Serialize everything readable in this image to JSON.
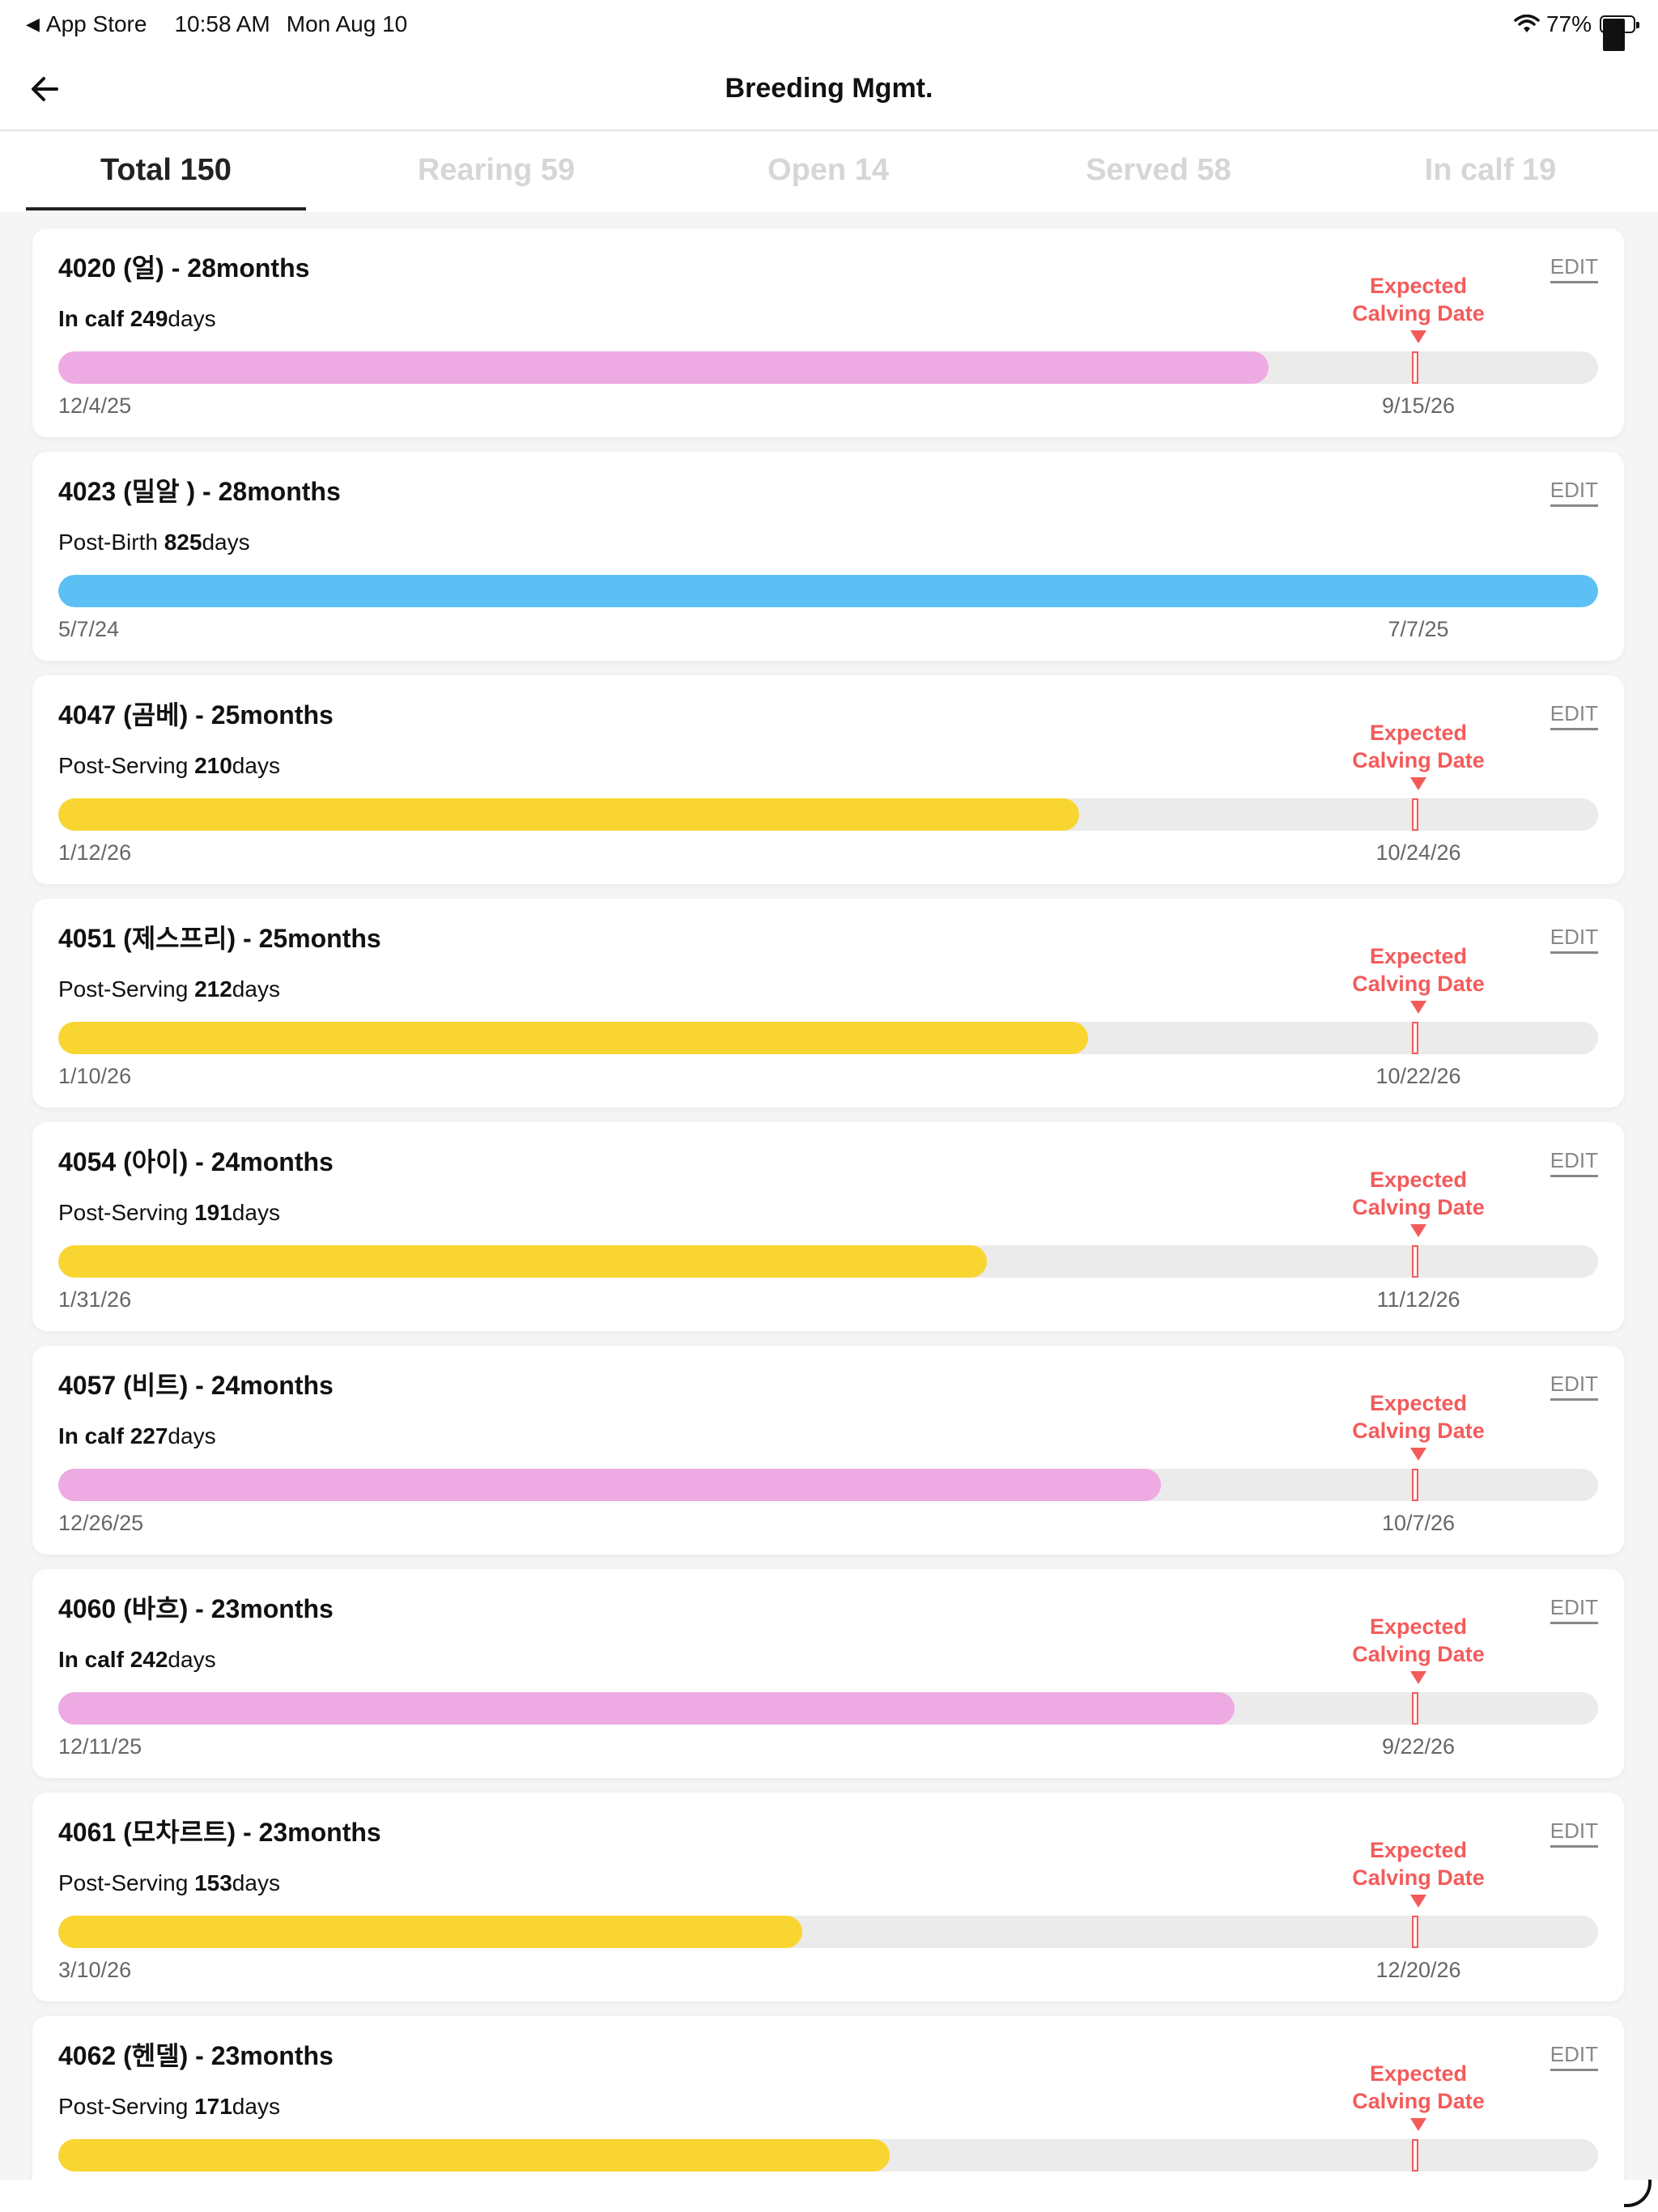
{
  "status_bar": {
    "back_app": "App Store",
    "time": "10:58 AM",
    "date": "Mon Aug 10",
    "battery": "77%"
  },
  "nav": {
    "title": "Breeding Mgmt."
  },
  "tabs": [
    {
      "label": "Total 150",
      "active": true
    },
    {
      "label": "Rearing 59",
      "active": false
    },
    {
      "label": "Open 14",
      "active": false
    },
    {
      "label": "Served 58",
      "active": false
    },
    {
      "label": "In calf 19",
      "active": false
    }
  ],
  "colors": {
    "in_calf": "#eeaae2",
    "post_birth": "#5cc0f5",
    "post_serving": "#f9d531",
    "expected": "#f35b5b"
  },
  "edit_label": "EDIT",
  "expected_label_line1": "Expected",
  "expected_label_line2": "Calving Date",
  "days_suffix": "days",
  "cards": [
    {
      "title": "4020 (얼) - 28months",
      "status": "In calf",
      "days": "249",
      "start": "12/4/25",
      "end": "9/15/26",
      "progress": 0.786,
      "color": "#eeaae2",
      "status_bold": true,
      "expected": true
    },
    {
      "title": "4023 (밀알 ) - 28months",
      "status": "Post-Birth",
      "days": "825",
      "start": "5/7/24",
      "end": "7/7/25",
      "progress": 1.0,
      "color": "#5cc0f5",
      "status_bold": false,
      "expected": false
    },
    {
      "title": "4047 (곰베) - 25months",
      "status": "Post-Serving",
      "days": "210",
      "start": "1/12/26",
      "end": "10/24/26",
      "progress": 0.663,
      "color": "#f9d531",
      "status_bold": false,
      "expected": true
    },
    {
      "title": "4051 (제스프리) - 25months",
      "status": "Post-Serving",
      "days": "212",
      "start": "1/10/26",
      "end": "10/22/26",
      "progress": 0.669,
      "color": "#f9d531",
      "status_bold": false,
      "expected": true
    },
    {
      "title": "4054 (아이) - 24months",
      "status": "Post-Serving",
      "days": "191",
      "start": "1/31/26",
      "end": "11/12/26",
      "progress": 0.603,
      "color": "#f9d531",
      "status_bold": false,
      "expected": true
    },
    {
      "title": "4057 (비트) - 24months",
      "status": "In calf",
      "days": "227",
      "start": "12/26/25",
      "end": "10/7/26",
      "progress": 0.716,
      "color": "#eeaae2",
      "status_bold": true,
      "expected": true
    },
    {
      "title": "4060 (바흐) - 23months",
      "status": "In calf",
      "days": "242",
      "start": "12/11/25",
      "end": "9/22/26",
      "progress": 0.764,
      "color": "#eeaae2",
      "status_bold": true,
      "expected": true
    },
    {
      "title": "4061 (모차르트) - 23months",
      "status": "Post-Serving",
      "days": "153",
      "start": "3/10/26",
      "end": "12/20/26",
      "progress": 0.483,
      "color": "#f9d531",
      "status_bold": false,
      "expected": true
    },
    {
      "title": "4062 (헨델) - 23months",
      "status": "Post-Serving",
      "days": "171",
      "start": "",
      "end": "",
      "progress": 0.54,
      "color": "#f9d531",
      "status_bold": false,
      "expected": true
    }
  ]
}
